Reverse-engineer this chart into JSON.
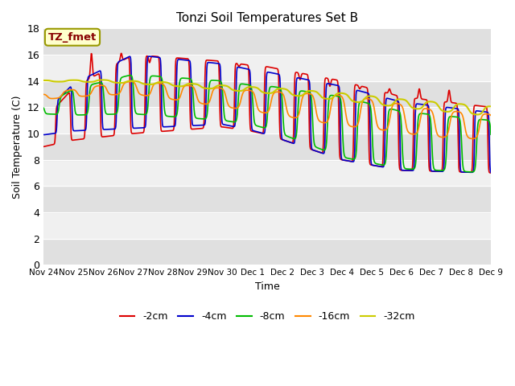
{
  "title": "Tonzi Soil Temperatures Set B",
  "xlabel": "Time",
  "ylabel": "Soil Temperature (C)",
  "ylim": [
    0,
    18
  ],
  "yticks": [
    0,
    2,
    4,
    6,
    8,
    10,
    12,
    14,
    16,
    18
  ],
  "xtick_labels": [
    "Nov 24",
    "Nov 25",
    "Nov 26",
    "Nov 27",
    "Nov 28",
    "Nov 29",
    "Nov 30",
    "Dec 1",
    "Dec 2",
    "Dec 3",
    "Dec 4",
    "Dec 5",
    "Dec 6",
    "Dec 7",
    "Dec 8",
    "Dec 9"
  ],
  "background_color": "#ffffff",
  "plot_bg_light": "#f0f0f0",
  "plot_bg_dark": "#e0e0e0",
  "annotation_label": "TZ_fmet",
  "annotation_bg": "#ffffcc",
  "annotation_border": "#999900",
  "annotation_text_color": "#880000",
  "colors": {
    "-2cm": "#dd0000",
    "-4cm": "#0000cc",
    "-8cm": "#00bb00",
    "-16cm": "#ff8800",
    "-32cm": "#cccc00"
  },
  "legend_labels": [
    "-2cm",
    "-4cm",
    "-8cm",
    "-16cm",
    "-32cm"
  ],
  "n_days": 15,
  "pts_per_day": 96
}
